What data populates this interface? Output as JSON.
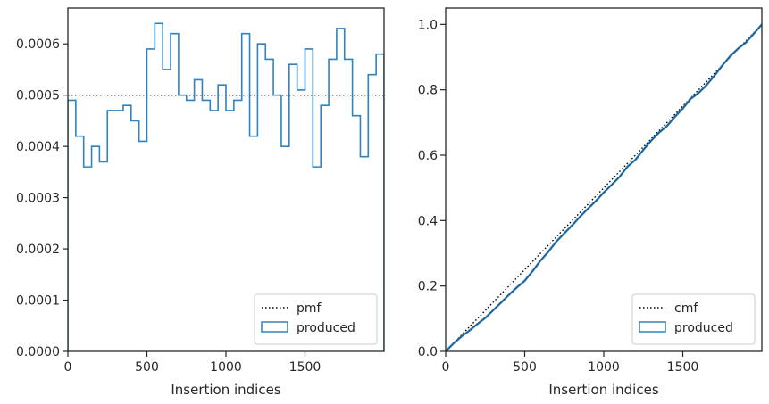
{
  "chart_data": [
    {
      "type": "histogram-step",
      "xlabel": "Insertion indices",
      "ylabel": "",
      "xlim": [
        0,
        2000
      ],
      "ylim": [
        0,
        0.00067
      ],
      "x_ticks": [
        0,
        500,
        1000,
        1500
      ],
      "x_tick_labels": [
        "0",
        "500",
        "1000",
        "1500"
      ],
      "y_ticks": [
        0,
        0.0001,
        0.0002,
        0.0003,
        0.0004,
        0.0005,
        0.0006
      ],
      "y_tick_labels": [
        "0.0000",
        "0.0001",
        "0.0002",
        "0.0003",
        "0.0004",
        "0.0005",
        "0.0006"
      ],
      "grid": false,
      "legend_position": "lower-right",
      "reference_line": {
        "name": "pmf",
        "y": 0.0005,
        "style": "dotted",
        "color": "#000000"
      },
      "series": [
        {
          "name": "produced",
          "color": "#3182bd",
          "bin_edges": [
            0,
            50,
            100,
            150,
            200,
            250,
            300,
            350,
            400,
            450,
            500,
            550,
            600,
            650,
            700,
            750,
            800,
            850,
            900,
            950,
            1000,
            1050,
            1100,
            1150,
            1200,
            1250,
            1300,
            1350,
            1400,
            1450,
            1500,
            1550,
            1600,
            1650,
            1700,
            1750,
            1800,
            1850,
            1900,
            1950,
            2000
          ],
          "values": [
            0.00049,
            0.00042,
            0.00036,
            0.0004,
            0.00037,
            0.00047,
            0.00047,
            0.00048,
            0.00045,
            0.00041,
            0.00059,
            0.00064,
            0.00055,
            0.00062,
            0.0005,
            0.00049,
            0.00053,
            0.00049,
            0.00047,
            0.00052,
            0.00047,
            0.00049,
            0.00062,
            0.00042,
            0.0006,
            0.00057,
            0.0005,
            0.0004,
            0.00056,
            0.00051,
            0.00059,
            0.00036,
            0.00048,
            0.00057,
            0.00063,
            0.00057,
            0.00046,
            0.00038,
            0.00054,
            0.00058
          ]
        }
      ]
    },
    {
      "type": "line",
      "xlabel": "Insertion indices",
      "ylabel": "",
      "xlim": [
        0,
        2000
      ],
      "ylim": [
        0,
        1.05
      ],
      "x_ticks": [
        0,
        500,
        1000,
        1500
      ],
      "x_tick_labels": [
        "0",
        "500",
        "1000",
        "1500"
      ],
      "y_ticks": [
        0,
        0.2,
        0.4,
        0.6,
        0.8,
        1.0
      ],
      "y_tick_labels": [
        "0.0",
        "0.2",
        "0.4",
        "0.6",
        "0.8",
        "1.0"
      ],
      "grid": false,
      "legend_position": "lower-right",
      "reference_line": {
        "name": "cmf",
        "x": [
          0,
          2000
        ],
        "y": [
          0,
          1
        ],
        "style": "dotted",
        "color": "#000000"
      },
      "series": [
        {
          "name": "produced",
          "color": "#3182bd",
          "x": [
            0,
            50,
            100,
            150,
            200,
            250,
            300,
            350,
            400,
            450,
            500,
            550,
            600,
            650,
            700,
            750,
            800,
            850,
            900,
            950,
            1000,
            1050,
            1100,
            1150,
            1200,
            1250,
            1300,
            1350,
            1400,
            1450,
            1500,
            1550,
            1600,
            1650,
            1700,
            1750,
            1800,
            1850,
            1900,
            1950,
            2000
          ],
          "y": [
            0,
            0.0245,
            0.0455,
            0.0635,
            0.0835,
            0.102,
            0.1255,
            0.149,
            0.173,
            0.1955,
            0.216,
            0.2455,
            0.2775,
            0.305,
            0.336,
            0.361,
            0.3855,
            0.412,
            0.4365,
            0.46,
            0.486,
            0.5095,
            0.534,
            0.565,
            0.586,
            0.616,
            0.6445,
            0.6695,
            0.6895,
            0.7175,
            0.743,
            0.7725,
            0.7905,
            0.8145,
            0.843,
            0.8745,
            0.903,
            0.926,
            0.945,
            0.972,
            1.0
          ]
        }
      ]
    }
  ]
}
